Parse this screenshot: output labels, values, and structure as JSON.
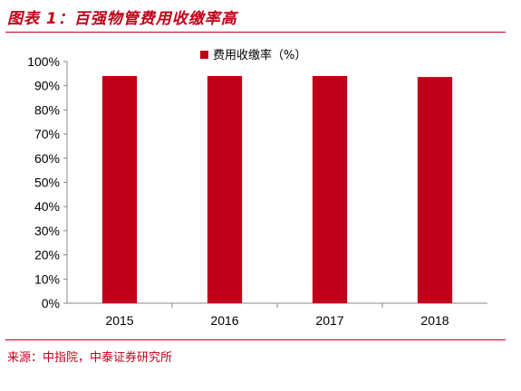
{
  "header": {
    "title": "图表 1：百强物管费用收缴率高"
  },
  "footer": {
    "source": "来源：中指院，中泰证券研究所"
  },
  "colors": {
    "accent": "#c00018",
    "bar": "#c00018"
  },
  "chart_data": {
    "type": "bar",
    "categories": [
      "2015",
      "2016",
      "2017",
      "2018"
    ],
    "series": [
      {
        "name": "费用收缴率（%）",
        "values": [
          94.0,
          94.0,
          94.0,
          93.6
        ]
      }
    ],
    "ylim": [
      0,
      100
    ],
    "yticks": [
      "0%",
      "10%",
      "20%",
      "30%",
      "40%",
      "50%",
      "60%",
      "70%",
      "80%",
      "90%",
      "100%"
    ],
    "grid": false,
    "legend_position": "top-center"
  }
}
